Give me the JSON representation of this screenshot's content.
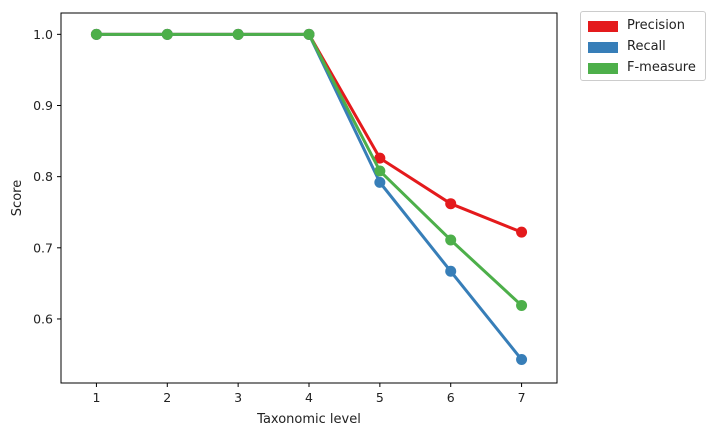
{
  "chart_data": {
    "type": "line",
    "title": "",
    "xlabel": "Taxonomic level",
    "ylabel": "Score",
    "x": [
      1,
      2,
      3,
      4,
      5,
      6,
      7
    ],
    "xlim": [
      0.5,
      7.5
    ],
    "ylim": [
      0.51,
      1.03
    ],
    "yticks": [
      0.6,
      0.7,
      0.8,
      0.9,
      1.0
    ],
    "ytick_labels": [
      "0.6",
      "0.7",
      "0.8",
      "0.9",
      "1.0"
    ],
    "xtick_labels": [
      "1",
      "2",
      "3",
      "4",
      "5",
      "6",
      "7"
    ],
    "grid": false,
    "legend_position": "outside-top-right",
    "series": [
      {
        "name": "Precision",
        "color": "#e41a1c",
        "values": [
          1.0,
          1.0,
          1.0,
          1.0,
          0.826,
          0.762,
          0.722
        ]
      },
      {
        "name": "Recall",
        "color": "#377eb8",
        "values": [
          1.0,
          1.0,
          1.0,
          1.0,
          0.792,
          0.667,
          0.543
        ]
      },
      {
        "name": "F-measure",
        "color": "#4daf4a",
        "values": [
          1.0,
          1.0,
          1.0,
          1.0,
          0.808,
          0.711,
          0.619
        ]
      }
    ]
  }
}
